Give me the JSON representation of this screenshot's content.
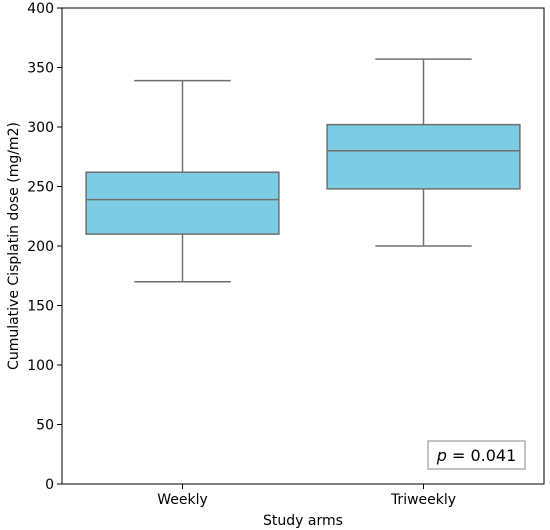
{
  "chart_data": {
    "type": "box",
    "xlabel": "Study arms",
    "ylabel": "Cumulative Cisplatin dose (mg/m2)",
    "ylim": [
      0,
      400
    ],
    "yticks": [
      0,
      50,
      100,
      150,
      200,
      250,
      300,
      350,
      400
    ],
    "categories": [
      "Weekly",
      "Triweekly"
    ],
    "boxes": [
      {
        "category": "Weekly",
        "whisker_low": 170,
        "q1": 210,
        "median": 239,
        "q3": 262,
        "whisker_high": 339
      },
      {
        "category": "Triweekly",
        "whisker_low": 200,
        "q1": 248,
        "median": 280,
        "q3": 302,
        "whisker_high": 357
      }
    ],
    "box_color": "#7ccde3",
    "line_color": "#707070",
    "annotation": {
      "prefix": "p",
      "text": " = 0.041",
      "placement": "bottom-right"
    },
    "grid": false,
    "legend": "none"
  }
}
